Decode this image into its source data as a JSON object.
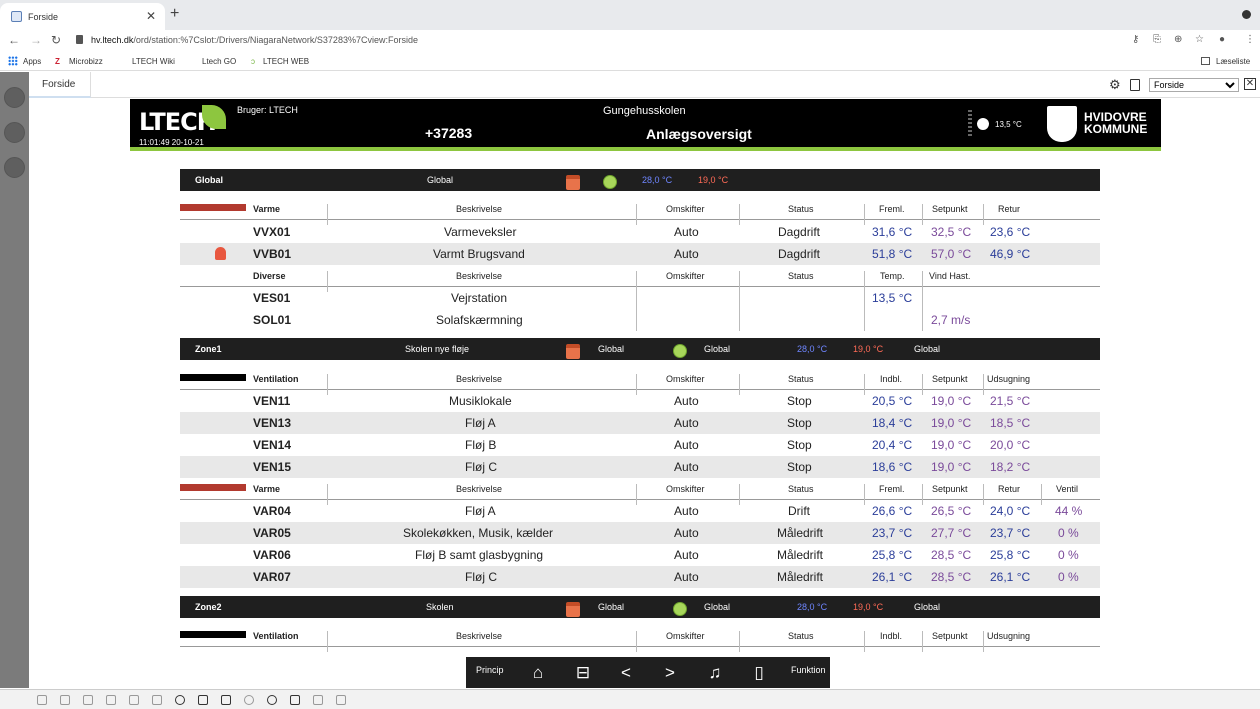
{
  "browser": {
    "tab_title": "Forside",
    "url_domain": "hv.ltech.dk",
    "url_path": "/ord/station:%7Cslot:/Drivers/NiagaraNetwork/S37283%7Cview:Forside",
    "bookmarks": [
      "Apps",
      "Microbizz",
      "LTECH Wiki",
      "Ltech GO",
      "LTECH WEB"
    ],
    "reading_list": "Læseliste"
  },
  "app": {
    "tab_label": "Forside",
    "view_select": "Forside"
  },
  "banner": {
    "logo": "LTECH",
    "datetime": "11:01:49 20-10-21",
    "user": "Bruger: LTECH",
    "station_id": "+37283",
    "site_name": "Gungehusskolen",
    "page_title": "Anlægsoversigt",
    "outdoor_temp": "13,5 °C",
    "kommune_line1": "HVIDOVRE",
    "kommune_line2": "KOMMUNE"
  },
  "global_bar": {
    "name": "Global",
    "desc": "Global",
    "temp_blue": "28,0 °C",
    "temp_red": "19,0 °C"
  },
  "varme_global": {
    "group": "Varme",
    "headers": [
      "Beskrivelse",
      "Omskifter",
      "Status",
      "Freml.",
      "Setpunkt",
      "Retur"
    ],
    "rows": [
      {
        "code": "VVX01",
        "desc": "Varmeveksler",
        "mode": "Auto",
        "status": "Dagdrift",
        "v1": "31,6 °C",
        "v2": "32,5 °C",
        "v3": "23,6 °C"
      },
      {
        "code": "VVB01",
        "desc": "Varmt Brugsvand",
        "mode": "Auto",
        "status": "Dagdrift",
        "v1": "51,8 °C",
        "v2": "57,0 °C",
        "v3": "46,9 °C"
      }
    ]
  },
  "diverse": {
    "group": "Diverse",
    "headers": [
      "Beskrivelse",
      "Omskifter",
      "Status",
      "Temp.",
      "Vind Hast."
    ],
    "rows": [
      {
        "code": "VES01",
        "desc": "Vejrstation",
        "v1": "13,5 °C",
        "v2": ""
      },
      {
        "code": "SOL01",
        "desc": "Solafskærmning",
        "v1": "",
        "v2": "2,7 m/s"
      }
    ]
  },
  "zone1_bar": {
    "name": "Zone1",
    "desc": "Skolen nye fløje",
    "sched": "Global",
    "clock": "Global",
    "temp_blue": "28,0 °C",
    "temp_red": "19,0 °C",
    "extra": "Global"
  },
  "vent_zone1": {
    "group": "Ventilation",
    "headers": [
      "Beskrivelse",
      "Omskifter",
      "Status",
      "Indbl.",
      "Setpunkt",
      "Udsugning"
    ],
    "rows": [
      {
        "code": "VEN11",
        "desc": "Musiklokale",
        "mode": "Auto",
        "status": "Stop",
        "v1": "20,5 °C",
        "v2": "19,0 °C",
        "v3": "21,5 °C"
      },
      {
        "code": "VEN13",
        "desc": "Fløj A",
        "mode": "Auto",
        "status": "Stop",
        "v1": "18,4 °C",
        "v2": "19,0 °C",
        "v3": "18,5 °C"
      },
      {
        "code": "VEN14",
        "desc": "Fløj B",
        "mode": "Auto",
        "status": "Stop",
        "v1": "20,4 °C",
        "v2": "19,0 °C",
        "v3": "20,0 °C"
      },
      {
        "code": "VEN15",
        "desc": "Fløj C",
        "mode": "Auto",
        "status": "Stop",
        "v1": "18,6 °C",
        "v2": "19,0 °C",
        "v3": "18,2 °C"
      }
    ]
  },
  "varme_zone1": {
    "group": "Varme",
    "headers": [
      "Beskrivelse",
      "Omskifter",
      "Status",
      "Freml.",
      "Setpunkt",
      "Retur",
      "Ventil"
    ],
    "rows": [
      {
        "code": "VAR04",
        "desc": "Fløj A",
        "mode": "Auto",
        "status": "Drift",
        "v1": "26,6 °C",
        "v2": "26,5 °C",
        "v3": "24,0 °C",
        "v4": "44 %"
      },
      {
        "code": "VAR05",
        "desc": "Skolekøkken, Musik, kælder",
        "mode": "Auto",
        "status": "Måledrift",
        "v1": "23,7 °C",
        "v2": "27,7 °C",
        "v3": "23,7 °C",
        "v4": "0 %"
      },
      {
        "code": "VAR06",
        "desc": "Fløj B samt glasbygning",
        "mode": "Auto",
        "status": "Måledrift",
        "v1": "25,8 °C",
        "v2": "28,5 °C",
        "v3": "25,8 °C",
        "v4": "0 %"
      },
      {
        "code": "VAR07",
        "desc": "Fløj C",
        "mode": "Auto",
        "status": "Måledrift",
        "v1": "26,1 °C",
        "v2": "28,5 °C",
        "v3": "26,1 °C",
        "v4": "0 %"
      }
    ]
  },
  "zone2_bar": {
    "name": "Zone2",
    "desc": "Skolen",
    "sched": "Global",
    "clock": "Global",
    "temp_blue": "28,0 °C",
    "temp_red": "19,0 °C",
    "extra": "Global"
  },
  "vent_zone2": {
    "group": "Ventilation",
    "headers": [
      "Beskrivelse",
      "Omskifter",
      "Status",
      "Indbl.",
      "Setpunkt",
      "Udsugning"
    ]
  },
  "toolbar": {
    "left_label": "Princip",
    "right_label": "Funktion"
  },
  "colors": {
    "varme": "#b23a2f",
    "ventilation": "#000000",
    "banner_accent": "#8dc63f"
  }
}
